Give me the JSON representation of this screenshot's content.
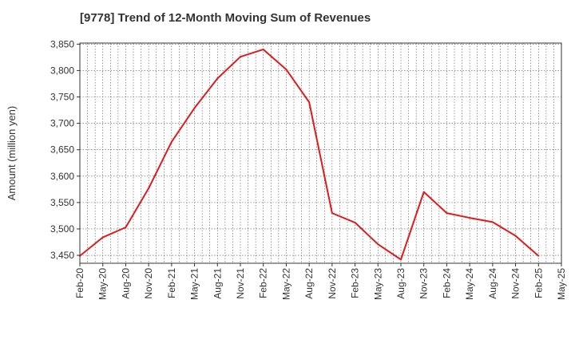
{
  "chart_data": {
    "type": "line",
    "title": "[9778]  Trend of 12-Month Moving Sum of Revenues",
    "xlabel": "",
    "ylabel": "Amount (million yen)",
    "ylim": [
      3435,
      3852
    ],
    "yticks": [
      3450,
      3500,
      3550,
      3600,
      3650,
      3700,
      3750,
      3800,
      3850
    ],
    "ytick_labels": [
      "3,450",
      "3,500",
      "3,550",
      "3,600",
      "3,650",
      "3,700",
      "3,750",
      "3,800",
      "3,850"
    ],
    "xtick_labels": [
      "Feb-20",
      "May-20",
      "Aug-20",
      "Nov-20",
      "Feb-21",
      "May-21",
      "Aug-21",
      "Nov-21",
      "Feb-22",
      "May-22",
      "Aug-22",
      "Nov-22",
      "Feb-23",
      "May-23",
      "Aug-23",
      "Nov-23",
      "Feb-24",
      "May-24",
      "Aug-24",
      "Nov-24",
      "Feb-25",
      "May-25"
    ],
    "grid": true,
    "line_color": "#e31a1c",
    "series": [
      {
        "x": [
          "Feb-20",
          "May-20",
          "Aug-20",
          "Nov-20",
          "Feb-21",
          "May-21",
          "Aug-21",
          "Nov-21",
          "Feb-22",
          "May-22",
          "Aug-22",
          "Nov-22",
          "Feb-23",
          "May-23",
          "Aug-23",
          "Nov-23",
          "Feb-24",
          "May-24",
          "Aug-24",
          "Nov-24",
          "Feb-25"
        ],
        "values": [
          3449,
          3484,
          3503,
          3577,
          3665,
          3729,
          3785,
          3826,
          3840,
          3802,
          3740,
          3530,
          3512,
          3471,
          3442,
          3570,
          3530,
          3521,
          3513,
          3487,
          3449
        ]
      }
    ]
  }
}
